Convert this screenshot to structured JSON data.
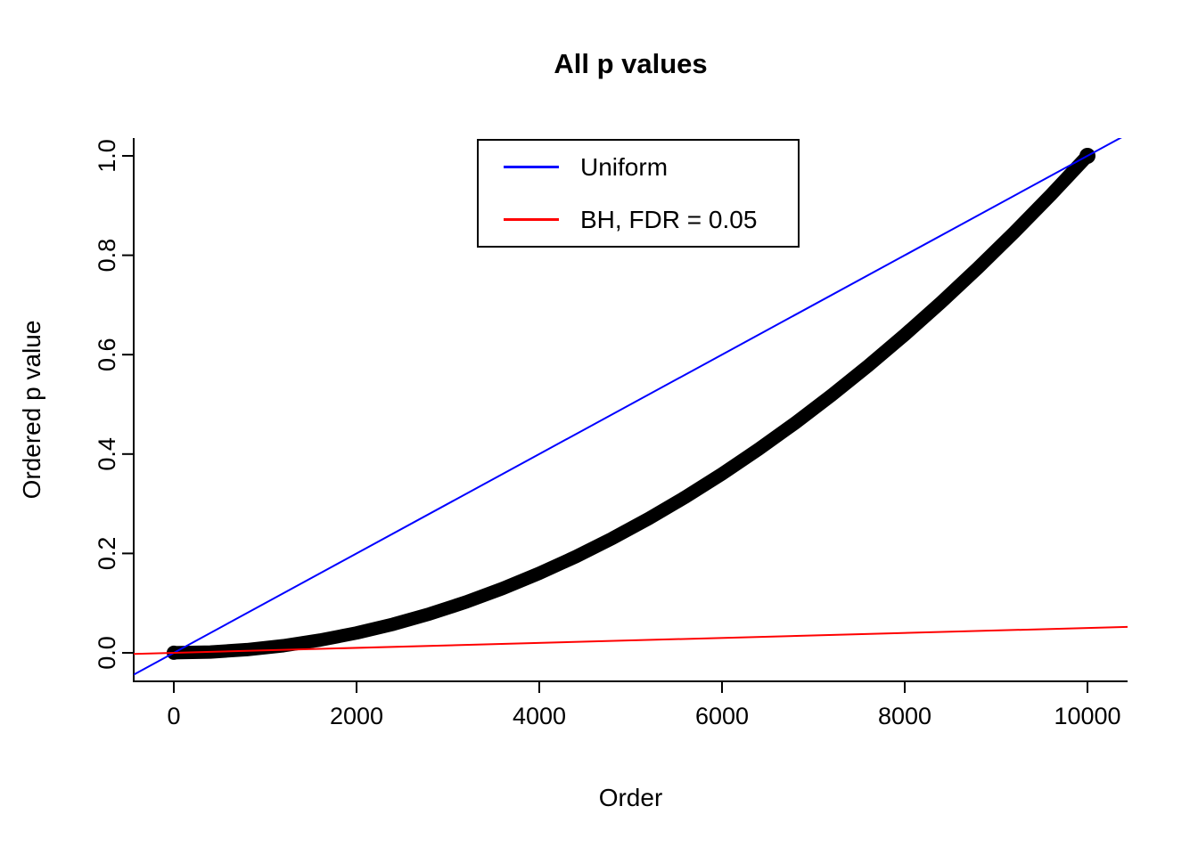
{
  "background": "#FFFFFF",
  "chart_data": {
    "type": "scatter",
    "title": "All p values",
    "xlabel": "Order",
    "ylabel": "Ordered p value",
    "xlim": [
      0,
      10000
    ],
    "ylim": [
      0,
      1
    ],
    "grid": false,
    "x_ticks": [
      0,
      2000,
      4000,
      6000,
      8000,
      10000
    ],
    "x_tick_labels": [
      "0",
      "2000",
      "4000",
      "6000",
      "8000",
      "10000"
    ],
    "y_ticks": [
      0.0,
      0.2,
      0.4,
      0.6,
      0.8,
      1.0
    ],
    "y_tick_labels": [
      "0.0",
      "0.2",
      "0.4",
      "0.6",
      "0.8",
      "1.0"
    ],
    "axis_color": "#000000",
    "legend": {
      "position": "top-center",
      "entries": [
        {
          "label": "Uniform",
          "color": "#0000FF"
        },
        {
          "label": "BH, FDR = 0.05",
          "color": "#FF0000"
        }
      ]
    },
    "series": [
      {
        "name": "Ordered p values",
        "type": "points",
        "color": "#000000",
        "x": [
          0,
          400,
          800,
          1200,
          1600,
          2000,
          2400,
          2800,
          3200,
          3600,
          4000,
          4400,
          4800,
          5200,
          5600,
          6000,
          6400,
          6800,
          7200,
          7600,
          8000,
          8400,
          8800,
          9200,
          9600,
          10000
        ],
        "y": [
          0.0002,
          0.0016,
          0.0064,
          0.0144,
          0.0256,
          0.04,
          0.0576,
          0.0784,
          0.1024,
          0.1296,
          0.16,
          0.1936,
          0.2304,
          0.2704,
          0.3136,
          0.36,
          0.4096,
          0.4624,
          0.5184,
          0.5776,
          0.64,
          0.7056,
          0.7744,
          0.8464,
          0.9216,
          1.0
        ]
      },
      {
        "name": "Uniform",
        "type": "abline",
        "color": "#0000FF",
        "intercept": 0,
        "slope": 0.0001
      },
      {
        "name": "BH, FDR = 0.05",
        "type": "abline",
        "color": "#FF0000",
        "intercept": 0,
        "slope": 5e-06
      }
    ]
  }
}
